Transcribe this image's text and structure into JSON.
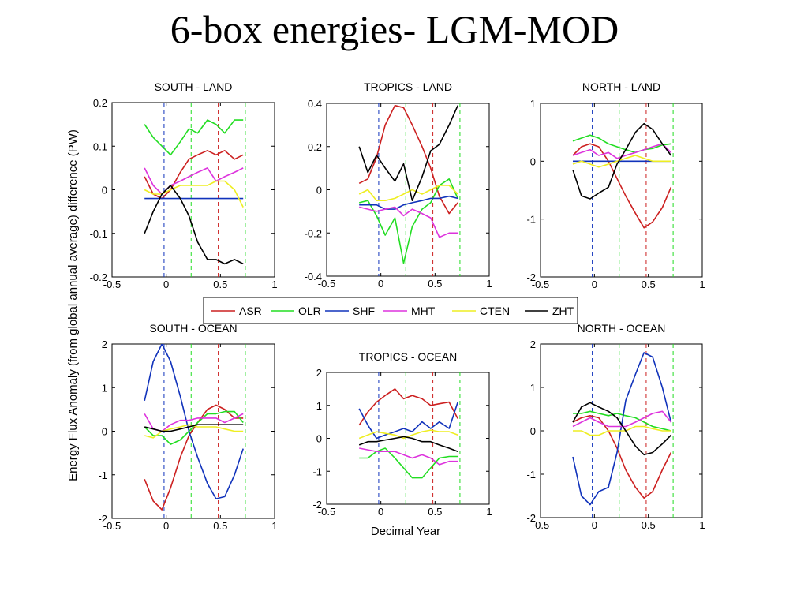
{
  "slide": {
    "title": "6-box energies- LGM-MOD"
  },
  "figure": {
    "ylabel": "Energy Flux Anomaly (from global annual average) difference (PW)",
    "xlabel": "Decimal Year"
  },
  "legend": {
    "entries": [
      {
        "name": "ASR",
        "color": "#cc2020"
      },
      {
        "name": "OLR",
        "color": "#22dd22"
      },
      {
        "name": "SHF",
        "color": "#1133bb"
      },
      {
        "name": "MHT",
        "color": "#dd33dd"
      },
      {
        "name": "CTEN",
        "color": "#eeee22"
      },
      {
        "name": "ZHT",
        "color": "#000000"
      }
    ]
  },
  "chart_data": [
    {
      "type": "line",
      "title": "SOUTH - LAND",
      "xlim": [
        -0.5,
        1
      ],
      "ylim": [
        -0.2,
        0.2
      ],
      "xticks": [
        "-0.5",
        "0",
        "0.5",
        "1"
      ],
      "yticks": [
        "-0.2",
        "-0.1",
        "0",
        "0.1",
        "0.2"
      ],
      "vlines": [
        {
          "x": -0.02,
          "color": "#1133bb"
        },
        {
          "x": 0.23,
          "color": "#22dd22"
        },
        {
          "x": 0.48,
          "color": "#cc2020"
        },
        {
          "x": 0.73,
          "color": "#22dd22"
        }
      ],
      "x": [
        -0.2,
        -0.12,
        -0.04,
        0.04,
        0.13,
        0.21,
        0.29,
        0.38,
        0.46,
        0.54,
        0.63,
        0.71
      ],
      "series": [
        {
          "name": "ASR",
          "values": [
            0.03,
            -0.01,
            -0.02,
            0.0,
            0.04,
            0.07,
            0.08,
            0.09,
            0.08,
            0.09,
            0.07,
            0.08
          ]
        },
        {
          "name": "OLR",
          "values": [
            0.15,
            0.12,
            0.1,
            0.08,
            0.11,
            0.14,
            0.13,
            0.16,
            0.15,
            0.13,
            0.16,
            0.16
          ]
        },
        {
          "name": "SHF",
          "values": [
            -0.02,
            -0.02,
            -0.02,
            -0.02,
            -0.02,
            -0.02,
            -0.02,
            -0.02,
            -0.02,
            -0.02,
            -0.02,
            -0.02
          ]
        },
        {
          "name": "MHT",
          "values": [
            0.05,
            0.01,
            -0.01,
            0.01,
            0.02,
            0.03,
            0.04,
            0.05,
            0.02,
            0.03,
            0.04,
            0.05
          ]
        },
        {
          "name": "CTEN",
          "values": [
            0.0,
            -0.01,
            -0.01,
            0.0,
            0.01,
            0.01,
            0.01,
            0.01,
            0.02,
            0.02,
            0.0,
            -0.04
          ]
        },
        {
          "name": "ZHT",
          "values": [
            -0.1,
            -0.05,
            -0.01,
            0.01,
            -0.02,
            -0.06,
            -0.12,
            -0.16,
            -0.16,
            -0.17,
            -0.16,
            -0.17
          ]
        }
      ]
    },
    {
      "type": "line",
      "title": "TROPICS - LAND",
      "xlim": [
        -0.5,
        1
      ],
      "ylim": [
        -0.4,
        0.4
      ],
      "xticks": [
        "-0.5",
        "0",
        "0.5",
        "1"
      ],
      "yticks": [
        "-0.4",
        "-0.2",
        "0",
        "0.2",
        "0.4"
      ],
      "vlines": [
        {
          "x": -0.02,
          "color": "#1133bb"
        },
        {
          "x": 0.23,
          "color": "#22dd22"
        },
        {
          "x": 0.48,
          "color": "#cc2020"
        },
        {
          "x": 0.73,
          "color": "#22dd22"
        }
      ],
      "x": [
        -0.2,
        -0.12,
        -0.04,
        0.04,
        0.13,
        0.21,
        0.29,
        0.38,
        0.46,
        0.54,
        0.63,
        0.71
      ],
      "series": [
        {
          "name": "ASR",
          "values": [
            0.03,
            0.05,
            0.15,
            0.3,
            0.39,
            0.38,
            0.3,
            0.2,
            0.1,
            -0.03,
            -0.11,
            -0.06
          ]
        },
        {
          "name": "OLR",
          "values": [
            -0.06,
            -0.05,
            -0.12,
            -0.21,
            -0.13,
            -0.34,
            -0.17,
            -0.09,
            -0.06,
            0.02,
            0.05,
            -0.04
          ]
        },
        {
          "name": "SHF",
          "values": [
            -0.07,
            -0.07,
            -0.07,
            -0.09,
            -0.09,
            -0.07,
            -0.06,
            -0.05,
            -0.04,
            -0.04,
            -0.03,
            -0.04
          ]
        },
        {
          "name": "MHT",
          "values": [
            -0.08,
            -0.09,
            -0.1,
            -0.09,
            -0.08,
            -0.12,
            -0.09,
            -0.11,
            -0.13,
            -0.22,
            -0.2,
            -0.2
          ]
        },
        {
          "name": "CTEN",
          "values": [
            -0.02,
            0.0,
            -0.05,
            -0.05,
            -0.04,
            -0.02,
            0.0,
            -0.02,
            0.0,
            0.02,
            0.02,
            -0.02
          ]
        },
        {
          "name": "ZHT",
          "values": [
            0.2,
            0.08,
            0.16,
            0.1,
            0.04,
            0.12,
            -0.05,
            0.06,
            0.18,
            0.21,
            0.3,
            0.39
          ]
        }
      ]
    },
    {
      "type": "line",
      "title": "NORTH - LAND",
      "xlim": [
        -0.5,
        1
      ],
      "ylim": [
        -2,
        1
      ],
      "xticks": [
        "-0.5",
        "0",
        "0.5",
        "1"
      ],
      "yticks": [
        "-2",
        "-1",
        "0",
        "1"
      ],
      "vlines": [
        {
          "x": -0.02,
          "color": "#1133bb"
        },
        {
          "x": 0.23,
          "color": "#22dd22"
        },
        {
          "x": 0.48,
          "color": "#cc2020"
        },
        {
          "x": 0.73,
          "color": "#22dd22"
        }
      ],
      "x": [
        -0.2,
        -0.12,
        -0.04,
        0.04,
        0.13,
        0.21,
        0.29,
        0.38,
        0.46,
        0.54,
        0.63,
        0.71
      ],
      "series": [
        {
          "name": "ASR",
          "values": [
            0.1,
            0.25,
            0.3,
            0.25,
            0.0,
            -0.3,
            -0.6,
            -0.9,
            -1.15,
            -1.05,
            -0.8,
            -0.45
          ]
        },
        {
          "name": "OLR",
          "values": [
            0.35,
            0.4,
            0.45,
            0.4,
            0.3,
            0.25,
            0.2,
            0.15,
            0.2,
            0.22,
            0.28,
            0.3
          ]
        },
        {
          "name": "SHF",
          "values": [
            0.0,
            0.0,
            0.0,
            0.0,
            0.0,
            0.0,
            0.0,
            0.0,
            0.0,
            0.0,
            0.0,
            0.0
          ]
        },
        {
          "name": "MHT",
          "values": [
            0.1,
            0.15,
            0.2,
            0.1,
            0.15,
            0.05,
            0.1,
            0.15,
            0.2,
            0.25,
            0.3,
            0.15
          ]
        },
        {
          "name": "CTEN",
          "values": [
            -0.05,
            0.0,
            -0.05,
            -0.1,
            -0.05,
            0.0,
            0.05,
            0.1,
            0.05,
            0.0,
            0.0,
            0.0
          ]
        },
        {
          "name": "ZHT",
          "values": [
            -0.15,
            -0.6,
            -0.65,
            -0.55,
            -0.45,
            -0.05,
            0.2,
            0.5,
            0.65,
            0.55,
            0.3,
            0.1
          ]
        }
      ]
    },
    {
      "type": "line",
      "title": "SOUTH - OCEAN",
      "xlim": [
        -0.5,
        1
      ],
      "ylim": [
        -2,
        2
      ],
      "xticks": [
        "-0.5",
        "0",
        "0.5",
        "1"
      ],
      "yticks": [
        "-2",
        "-1",
        "0",
        "1",
        "2"
      ],
      "vlines": [
        {
          "x": -0.02,
          "color": "#1133bb"
        },
        {
          "x": 0.23,
          "color": "#22dd22"
        },
        {
          "x": 0.48,
          "color": "#cc2020"
        },
        {
          "x": 0.73,
          "color": "#22dd22"
        }
      ],
      "x": [
        -0.2,
        -0.12,
        -0.04,
        0.04,
        0.13,
        0.21,
        0.29,
        0.38,
        0.46,
        0.54,
        0.63,
        0.71
      ],
      "series": [
        {
          "name": "ASR",
          "values": [
            -1.1,
            -1.6,
            -1.8,
            -1.3,
            -0.6,
            -0.1,
            0.2,
            0.5,
            0.6,
            0.5,
            0.3,
            0.3
          ]
        },
        {
          "name": "OLR",
          "values": [
            0.1,
            -0.1,
            -0.1,
            -0.3,
            -0.2,
            0.0,
            0.2,
            0.4,
            0.4,
            0.45,
            0.45,
            0.2
          ]
        },
        {
          "name": "SHF",
          "values": [
            0.7,
            1.6,
            2.0,
            1.6,
            0.8,
            0.0,
            -0.6,
            -1.2,
            -1.55,
            -1.5,
            -1.0,
            -0.4
          ]
        },
        {
          "name": "MHT",
          "values": [
            0.4,
            0.05,
            0.0,
            0.15,
            0.25,
            0.25,
            0.3,
            0.3,
            0.3,
            0.2,
            0.3,
            0.4
          ]
        },
        {
          "name": "CTEN",
          "values": [
            -0.1,
            -0.15,
            0.0,
            0.05,
            0.1,
            0.15,
            0.1,
            0.1,
            0.1,
            0.05,
            0.0,
            0.0
          ]
        },
        {
          "name": "ZHT",
          "values": [
            0.1,
            0.05,
            0.0,
            0.0,
            0.05,
            0.1,
            0.15,
            0.15,
            0.15,
            0.15,
            0.15,
            0.15
          ]
        }
      ]
    },
    {
      "type": "line",
      "title": "TROPICS - OCEAN",
      "xlim": [
        -0.5,
        1
      ],
      "ylim": [
        -2,
        2
      ],
      "xticks": [
        "-0.5",
        "0",
        "0.5",
        "1"
      ],
      "yticks": [
        "-2",
        "-1",
        "0",
        "1",
        "2"
      ],
      "vlines": [
        {
          "x": -0.02,
          "color": "#1133bb"
        },
        {
          "x": 0.23,
          "color": "#22dd22"
        },
        {
          "x": 0.48,
          "color": "#cc2020"
        },
        {
          "x": 0.73,
          "color": "#22dd22"
        }
      ],
      "x": [
        -0.2,
        -0.12,
        -0.04,
        0.04,
        0.13,
        0.21,
        0.29,
        0.38,
        0.46,
        0.54,
        0.63,
        0.71
      ],
      "series": [
        {
          "name": "ASR",
          "values": [
            0.4,
            0.8,
            1.1,
            1.3,
            1.5,
            1.2,
            1.3,
            1.2,
            1.0,
            1.05,
            1.1,
            0.6
          ]
        },
        {
          "name": "OLR",
          "values": [
            -0.6,
            -0.6,
            -0.4,
            -0.3,
            -0.6,
            -0.9,
            -1.2,
            -1.2,
            -0.9,
            -0.6,
            -0.55,
            -0.55
          ]
        },
        {
          "name": "SHF",
          "values": [
            0.9,
            0.4,
            0.0,
            0.1,
            0.2,
            0.3,
            0.2,
            0.5,
            0.3,
            0.5,
            0.3,
            1.1
          ]
        },
        {
          "name": "MHT",
          "values": [
            -0.3,
            -0.35,
            -0.4,
            -0.4,
            -0.4,
            -0.5,
            -0.6,
            -0.5,
            -0.6,
            -0.8,
            -0.7,
            -0.7
          ]
        },
        {
          "name": "CTEN",
          "values": [
            0.0,
            0.1,
            0.2,
            0.15,
            0.1,
            0.0,
            0.1,
            0.2,
            0.25,
            0.2,
            0.2,
            0.1
          ]
        },
        {
          "name": "ZHT",
          "values": [
            -0.2,
            -0.1,
            -0.1,
            -0.05,
            0.0,
            0.05,
            0.0,
            -0.1,
            -0.1,
            -0.2,
            -0.3,
            -0.4
          ]
        }
      ]
    },
    {
      "type": "line",
      "title": "NORTH - OCEAN",
      "xlim": [
        -0.5,
        1
      ],
      "ylim": [
        -2,
        2
      ],
      "xticks": [
        "-0.5",
        "0",
        "0.5",
        "1"
      ],
      "yticks": [
        "-2",
        "-1",
        "0",
        "1",
        "2"
      ],
      "vlines": [
        {
          "x": -0.02,
          "color": "#1133bb"
        },
        {
          "x": 0.23,
          "color": "#22dd22"
        },
        {
          "x": 0.48,
          "color": "#cc2020"
        },
        {
          "x": 0.73,
          "color": "#22dd22"
        }
      ],
      "x": [
        -0.2,
        -0.12,
        -0.04,
        0.04,
        0.13,
        0.21,
        0.29,
        0.38,
        0.46,
        0.54,
        0.63,
        0.71
      ],
      "series": [
        {
          "name": "ASR",
          "values": [
            0.2,
            0.3,
            0.35,
            0.3,
            0.0,
            -0.4,
            -0.9,
            -1.3,
            -1.55,
            -1.4,
            -0.9,
            -0.5
          ]
        },
        {
          "name": "OLR",
          "values": [
            0.4,
            0.4,
            0.45,
            0.4,
            0.35,
            0.4,
            0.35,
            0.3,
            0.2,
            0.1,
            0.05,
            0.0
          ]
        },
        {
          "name": "SHF",
          "values": [
            -0.6,
            -1.5,
            -1.7,
            -1.4,
            -1.3,
            -0.5,
            0.7,
            1.3,
            1.8,
            1.7,
            1.0,
            0.2
          ]
        },
        {
          "name": "MHT",
          "values": [
            0.1,
            0.2,
            0.3,
            0.2,
            0.1,
            0.1,
            0.1,
            0.2,
            0.3,
            0.4,
            0.45,
            0.2
          ]
        },
        {
          "name": "CTEN",
          "values": [
            0.0,
            0.0,
            -0.1,
            -0.1,
            0.0,
            0.0,
            0.0,
            0.1,
            0.1,
            0.05,
            0.0,
            0.0
          ]
        },
        {
          "name": "ZHT",
          "values": [
            0.2,
            0.55,
            0.65,
            0.55,
            0.45,
            0.3,
            0.0,
            -0.35,
            -0.55,
            -0.5,
            -0.3,
            -0.1
          ]
        }
      ]
    }
  ]
}
